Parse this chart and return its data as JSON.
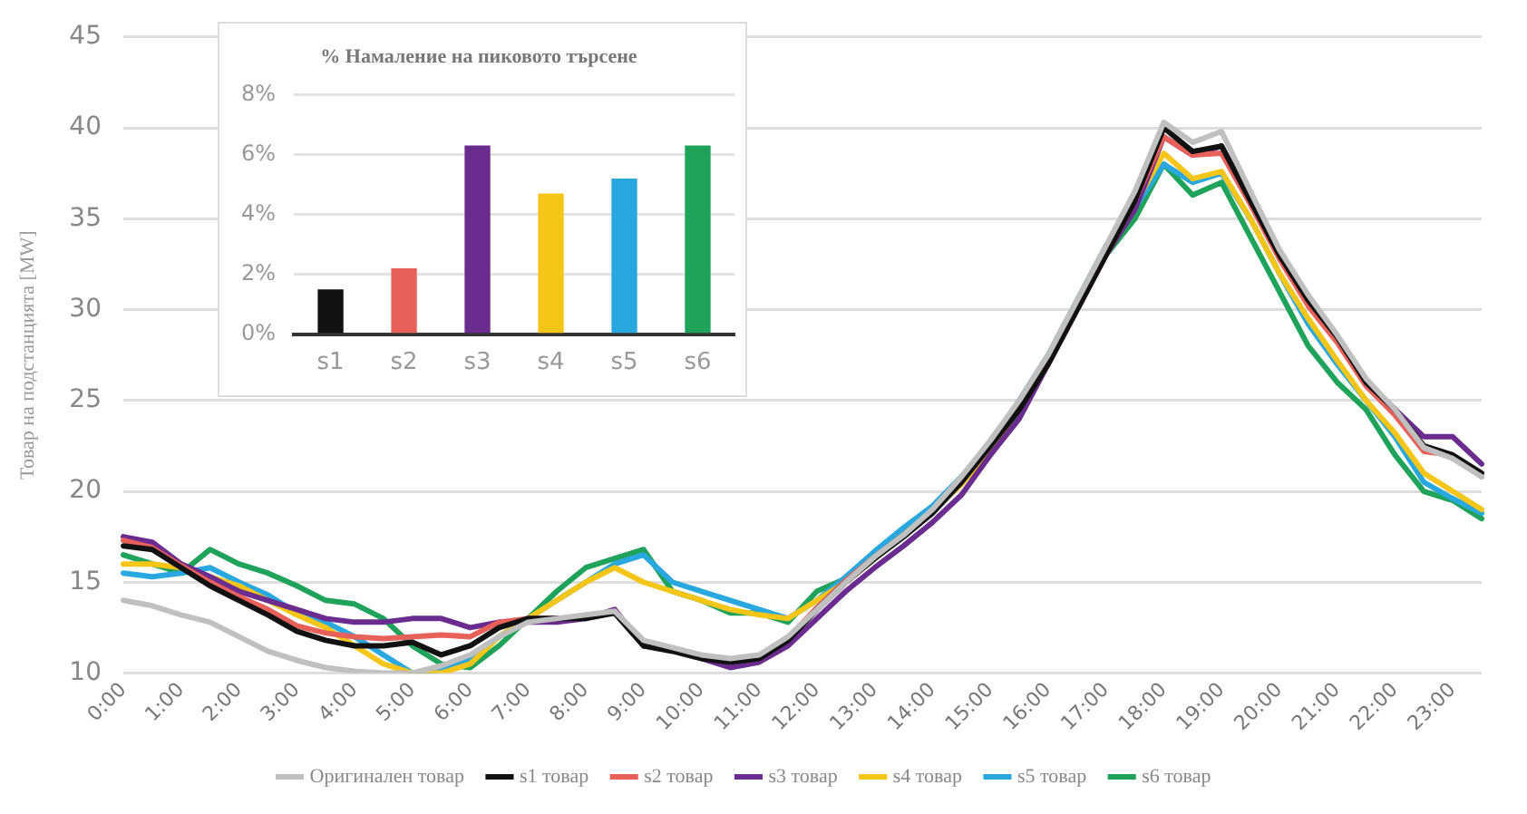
{
  "chart_data": [
    {
      "type": "line",
      "ylabel": "Товар на подстанцията [MW]",
      "categories": [
        "0:00",
        null,
        "1:00",
        null,
        "2:00",
        null,
        "3:00",
        null,
        "4:00",
        null,
        "5:00",
        null,
        "6:00",
        null,
        "7:00",
        null,
        "8:00",
        null,
        "9:00",
        null,
        "10:00",
        null,
        "11:00",
        null,
        "12:00",
        null,
        "13:00",
        null,
        "14:00",
        null,
        "15:00",
        null,
        "16:00",
        null,
        "17:00",
        null,
        "18:00",
        null,
        "19:00",
        null,
        "20:00",
        null,
        "21:00",
        null,
        "22:00",
        null,
        "23:00",
        null
      ],
      "series": [
        {
          "name": "Оригинален товар",
          "color": "#c0c0c0",
          "values": [
            14,
            13.7,
            13.2,
            12.8,
            12,
            11.2,
            10.7,
            10.3,
            10.1,
            10,
            10,
            10.4,
            11,
            12,
            12.8,
            13,
            13.2,
            13.4,
            11.8,
            11.4,
            11,
            10.8,
            11,
            12,
            13.5,
            15,
            16.4,
            17.6,
            19,
            20.8,
            22.8,
            25,
            27.5,
            30.5,
            33.5,
            36.5,
            40.3,
            39.2,
            39.8,
            36.5,
            33.3,
            30.8,
            28.6,
            26.2,
            24.5,
            22.4,
            21.8,
            20.8
          ]
        },
        {
          "name": "s1 товар",
          "color": "#111111",
          "values": [
            17,
            16.8,
            15.8,
            14.8,
            14,
            13.2,
            12.3,
            11.8,
            11.5,
            11.5,
            11.7,
            11,
            11.5,
            12.5,
            13,
            13,
            13,
            13.3,
            11.5,
            11.2,
            10.8,
            10.6,
            10.8,
            11.8,
            13.5,
            15,
            16.3,
            17.5,
            18.8,
            20.5,
            22.5,
            24.5,
            27,
            30,
            33,
            36,
            40,
            38.7,
            39,
            36,
            33,
            30.5,
            28.5,
            26,
            24.5,
            22.5,
            22,
            21
          ]
        },
        {
          "name": "s2 товар",
          "color": "#e8605a",
          "values": [
            17.3,
            16.9,
            15.9,
            15,
            14.2,
            13.5,
            12.6,
            12.2,
            12,
            11.9,
            12,
            12.1,
            12,
            12.8,
            13,
            13,
            13.1,
            13.4,
            11.6,
            11.3,
            10.9,
            10.7,
            10.9,
            11.9,
            13.6,
            15.1,
            16.4,
            17.6,
            18.9,
            20.6,
            22.6,
            24.6,
            27,
            30,
            33,
            36,
            39.5,
            38.5,
            38.6,
            35.8,
            32.8,
            30.2,
            28.2,
            25.8,
            24.2,
            22.2,
            22,
            20.8
          ]
        },
        {
          "name": "s3 товар",
          "color": "#6a2c8e",
          "values": [
            17.5,
            17.2,
            16,
            15.3,
            14.5,
            14,
            13.5,
            13,
            12.8,
            12.8,
            13,
            13,
            12.5,
            12.8,
            12.8,
            12.8,
            13,
            13.5,
            11.5,
            11.3,
            10.8,
            10.3,
            10.6,
            11.5,
            13,
            14.5,
            15.8,
            17,
            18.3,
            19.8,
            22,
            24,
            27,
            30,
            33,
            35.5,
            39.5,
            38.5,
            39,
            36,
            33,
            30.5,
            28.5,
            26,
            24.5,
            23,
            23,
            21.5
          ]
        },
        {
          "name": "s4 товар",
          "color": "#f5c518",
          "values": [
            16,
            16,
            15.8,
            15.3,
            14.8,
            14,
            13.2,
            12.5,
            11.5,
            10.5,
            10,
            10,
            10.5,
            12,
            13,
            14,
            15,
            15.8,
            15,
            14.5,
            14,
            13.5,
            13.2,
            13,
            14,
            15,
            16.3,
            17.6,
            18.9,
            20.4,
            22.3,
            24.6,
            27.2,
            30.2,
            33.2,
            35.8,
            38.6,
            37.2,
            37.6,
            35,
            32,
            29.5,
            27.2,
            25,
            23.2,
            21,
            20,
            19
          ]
        },
        {
          "name": "s5 товар",
          "color": "#29a8e0",
          "values": [
            15.5,
            15.3,
            15.5,
            15.8,
            15,
            14.3,
            13.3,
            12.8,
            12,
            11,
            10,
            10.2,
            10.8,
            12,
            13,
            14,
            15,
            16,
            16.5,
            15,
            14.5,
            14,
            13.5,
            13,
            14,
            15.3,
            16.7,
            18,
            19.2,
            20.8,
            22.6,
            25,
            27.5,
            30.5,
            33.5,
            35.6,
            38,
            37,
            37.5,
            35,
            32,
            29.2,
            27,
            25,
            23,
            20.5,
            19.6,
            18.8
          ]
        },
        {
          "name": "s6 товар",
          "color": "#1fa35a",
          "values": [
            16.5,
            16,
            15.5,
            16.8,
            16,
            15.5,
            14.8,
            14,
            13.8,
            13,
            11.5,
            10.5,
            10.3,
            11.5,
            13,
            14.5,
            15.8,
            16.3,
            16.8,
            14.5,
            14,
            13.3,
            13.3,
            12.8,
            14.5,
            15.2,
            16.5,
            17.8,
            19,
            20.5,
            22,
            24.5,
            27,
            30,
            33,
            35,
            38,
            36.3,
            37,
            34,
            31,
            28,
            26,
            24.5,
            22,
            20,
            19.5,
            18.5
          ]
        }
      ],
      "ylim": [
        10,
        45
      ],
      "yticks": [
        10,
        15,
        20,
        25,
        30,
        35,
        40,
        45
      ],
      "grid": "y",
      "legend": "bottom",
      "marker": "none"
    },
    {
      "type": "bar",
      "title": "% Намаление на пиковото търсене",
      "categories": [
        "s1",
        "s2",
        "s3",
        "s4",
        "s5",
        "s6"
      ],
      "values": [
        1.5,
        2.2,
        6.3,
        4.7,
        5.2,
        6.3
      ],
      "colors": [
        "#111111",
        "#e8605a",
        "#6a2c8e",
        "#f5c518",
        "#29a8e0",
        "#1fa35a"
      ],
      "ylim": [
        0,
        8
      ],
      "yticks": [
        {
          "value": 0,
          "label": "0%"
        },
        {
          "value": 2,
          "label": "2%"
        },
        {
          "value": 4,
          "label": "4%"
        },
        {
          "value": 6,
          "label": "6%"
        },
        {
          "value": 8,
          "label": "8%"
        }
      ],
      "grid": "y",
      "legend": false
    }
  ]
}
